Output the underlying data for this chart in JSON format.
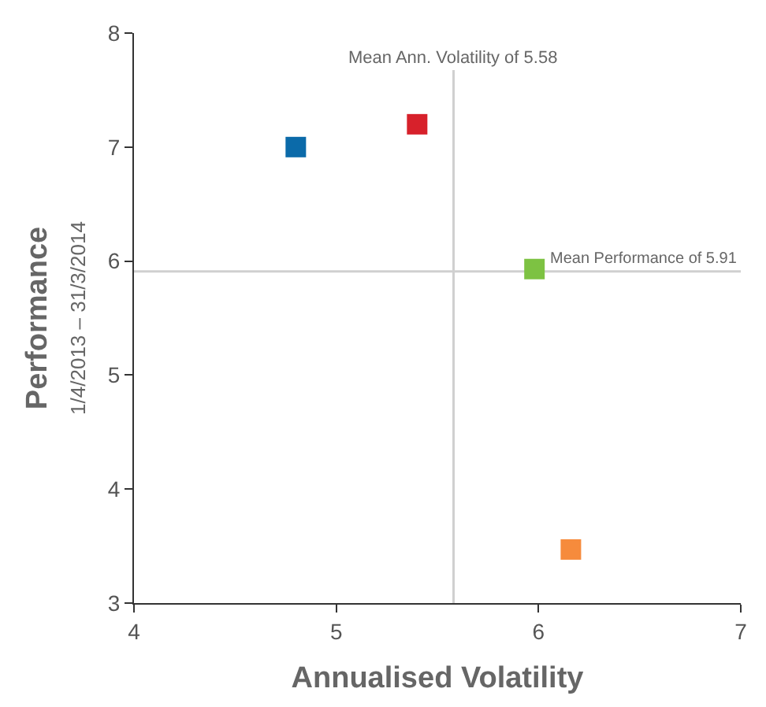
{
  "chart_data": {
    "type": "scatter",
    "xlabel": "Annualised Volatility",
    "ylabel": "Performance\n1/4/2013 – 31/3/2014",
    "x": [
      4.8,
      5.4,
      5.98,
      6.16
    ],
    "series": [
      {
        "values": [
          7.0,
          7.2,
          5.93,
          3.47
        ],
        "colors": [
          "#0b6aa9",
          "#d7212b",
          "#7dc242",
          "#f68b3c"
        ]
      }
    ],
    "marker": "square",
    "xlim": [
      4,
      7
    ],
    "xticks": [
      4,
      5,
      6,
      7
    ],
    "ylim": [
      3,
      8
    ],
    "yticks": [
      3,
      4,
      5,
      6,
      7,
      8
    ],
    "ref_lines": [
      {
        "axis": "x",
        "value": 5.58,
        "label": "Mean Ann. Volatility of 5.58",
        "color": "#d0d0d0"
      },
      {
        "axis": "y",
        "value": 5.91,
        "label": "Mean Performance of 5.91",
        "color": "#d0d0d0"
      }
    ],
    "grid": false
  }
}
